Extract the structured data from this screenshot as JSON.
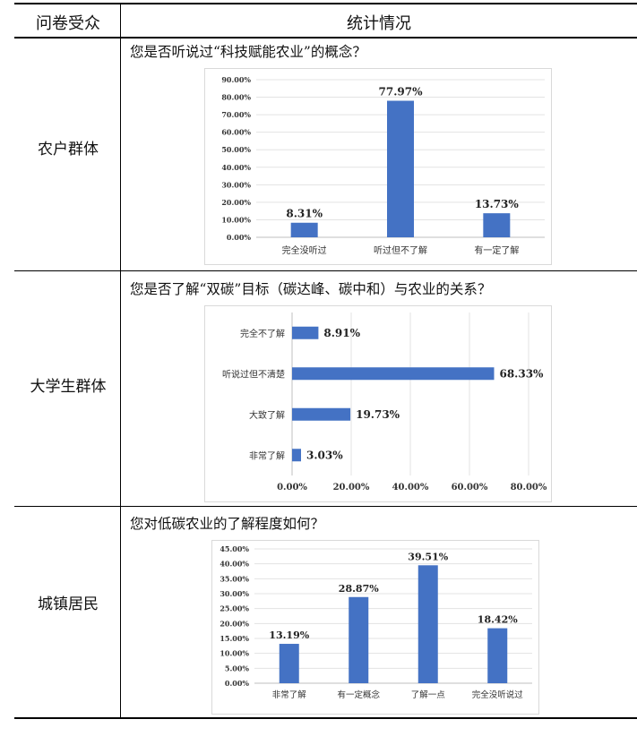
{
  "header": {
    "col1": "问卷受众",
    "col2": "统计情况"
  },
  "rows": [
    {
      "group": "农户群体",
      "question": "您是否听说过“科技赋能农业”的概念？"
    },
    {
      "group": "大学生群体",
      "question": "您是否了解“双碳”目标（碳达峰、碳中和）与农业的关系？"
    },
    {
      "group": "城镇居民",
      "question": "您对低碳农业的了解程度如何？"
    }
  ],
  "chart_data": [
    {
      "type": "bar",
      "orientation": "vertical",
      "categories": [
        "完全没听过",
        "听过但不了解",
        "有一定了解"
      ],
      "values": [
        8.31,
        77.97,
        13.73
      ],
      "value_labels": [
        "8.31%",
        "77.97%",
        "13.73%"
      ],
      "ylim": [
        0,
        90
      ],
      "yticks": [
        "0.00%",
        "10.00%",
        "20.00%",
        "30.00%",
        "40.00%",
        "50.00%",
        "60.00%",
        "70.00%",
        "80.00%",
        "90.00%"
      ],
      "grid": true,
      "color": "#4472C4"
    },
    {
      "type": "bar",
      "orientation": "horizontal",
      "categories": [
        "完全不了解",
        "听说过但不清楚",
        "大致了解",
        "非常了解"
      ],
      "values": [
        8.91,
        68.33,
        19.73,
        3.03
      ],
      "value_labels": [
        "8.91%",
        "68.33%",
        "19.73%",
        "3.03%"
      ],
      "xlim": [
        0,
        80
      ],
      "xticks": [
        "0.00%",
        "20.00%",
        "40.00%",
        "60.00%",
        "80.00%"
      ],
      "grid": true,
      "color": "#4472C4"
    },
    {
      "type": "bar",
      "orientation": "vertical",
      "categories": [
        "非常了解",
        "有一定概念",
        "了解一点",
        "完全没听说过"
      ],
      "values": [
        13.19,
        28.87,
        39.51,
        18.42
      ],
      "value_labels": [
        "13.19%",
        "28.87%",
        "39.51%",
        "18.42%"
      ],
      "ylim": [
        0,
        45
      ],
      "yticks": [
        "0.00%",
        "5.00%",
        "10.00%",
        "15.00%",
        "20.00%",
        "25.00%",
        "30.00%",
        "35.00%",
        "40.00%",
        "45.00%"
      ],
      "grid": true,
      "color": "#4472C4"
    }
  ]
}
